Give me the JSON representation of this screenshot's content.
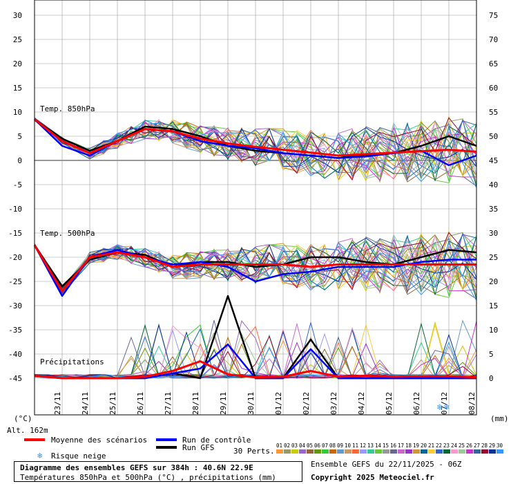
{
  "chart_data": {
    "type": "line",
    "left_axis": {
      "unit": "(°C)",
      "ticks": [
        30,
        25,
        20,
        15,
        10,
        5,
        0,
        -5,
        -10,
        -15,
        -20,
        -25,
        -30,
        -35,
        -40,
        -45
      ],
      "range": [
        -45,
        30
      ]
    },
    "right_axis": {
      "unit": "(mm)",
      "ticks": [
        75,
        70,
        65,
        60,
        55,
        50,
        45,
        40,
        35,
        30,
        25,
        20,
        15,
        10,
        5,
        0
      ],
      "range": [
        0,
        75
      ]
    },
    "x_labels": [
      "23/11",
      "24/11",
      "25/11",
      "26/11",
      "27/11",
      "28/11",
      "29/11",
      "30/11",
      "01/12",
      "02/12",
      "03/12",
      "04/12",
      "05/12",
      "06/12",
      "07/12",
      "08/12"
    ],
    "altitude_label": "Alt. 162m",
    "panel_labels": {
      "t850": "Temp. 850hPa",
      "t500": "Temp. 500hPa",
      "precip": "Précipitations"
    },
    "grid": true,
    "series": [
      {
        "name": "Moyenne des scénarios",
        "color": "#ff0000",
        "panel": "t850",
        "x": [
          0,
          1,
          2,
          3,
          4,
          5,
          6,
          7,
          8,
          9,
          10,
          11,
          12,
          13,
          14,
          15,
          16
        ],
        "values": [
          8.5,
          4,
          1.5,
          4,
          6.5,
          6,
          4.5,
          3.5,
          2.8,
          2.2,
          1.6,
          1.0,
          1.3,
          1.6,
          1.9,
          2.2,
          1.8
        ]
      },
      {
        "name": "Run de contrôle",
        "color": "#0000ff",
        "panel": "t850",
        "x": [
          0,
          1,
          2,
          3,
          4,
          5,
          6,
          7,
          8,
          9,
          10,
          11,
          12,
          13,
          14,
          15,
          16
        ],
        "values": [
          8.5,
          3,
          1,
          4,
          6.5,
          6,
          4,
          3,
          2.5,
          1.5,
          1,
          0.5,
          0.8,
          1.5,
          2,
          -1,
          1
        ]
      },
      {
        "name": "Run GFS",
        "color": "#000000",
        "panel": "t850",
        "x": [
          0,
          1,
          2,
          3,
          4,
          5,
          6,
          7,
          8,
          9,
          10,
          11,
          12,
          13,
          14,
          15,
          16
        ],
        "values": [
          8.5,
          4.5,
          2,
          4,
          7,
          6.5,
          5,
          3,
          2,
          1.5,
          1,
          0.5,
          1.2,
          1.5,
          3,
          5,
          3
        ]
      },
      {
        "name": "Moyenne des scénarios",
        "color": "#ff0000",
        "panel": "t500",
        "x": [
          0,
          1,
          2,
          3,
          4,
          5,
          6,
          7,
          8,
          9,
          10,
          11,
          12,
          13,
          14,
          15,
          16
        ],
        "values": [
          -17.5,
          -27,
          -20,
          -19,
          -20,
          -22,
          -21.5,
          -21.5,
          -21.5,
          -21.5,
          -22,
          -21.5,
          -21.5,
          -21.5,
          -21.5,
          -21.5,
          -21.5
        ]
      },
      {
        "name": "Run de contrôle",
        "color": "#0000ff",
        "panel": "t500",
        "x": [
          0,
          1,
          2,
          3,
          4,
          5,
          6,
          7,
          8,
          9,
          10,
          11,
          12,
          13,
          14,
          15,
          16
        ],
        "values": [
          -17.5,
          -28,
          -20,
          -18.5,
          -20,
          -21.5,
          -21,
          -22,
          -25,
          -23.5,
          -23,
          -22,
          -22,
          -22,
          -21,
          -20.5,
          -20.5
        ]
      },
      {
        "name": "Run GFS",
        "color": "#000000",
        "panel": "t500",
        "x": [
          0,
          1,
          2,
          3,
          4,
          5,
          6,
          7,
          8,
          9,
          10,
          11,
          12,
          13,
          14,
          15,
          16
        ],
        "values": [
          -17.5,
          -26,
          -20.5,
          -19,
          -19.5,
          -22,
          -21,
          -21,
          -22,
          -21.5,
          -20,
          -20,
          -21,
          -21.5,
          -20,
          -18.5,
          -19
        ]
      },
      {
        "name": "Moyenne des scénarios",
        "color": "#ff0000",
        "panel": "precip",
        "x": [
          0,
          1,
          2,
          3,
          4,
          5,
          6,
          7,
          8,
          9,
          10,
          11,
          12,
          13,
          14,
          15,
          16
        ],
        "values": [
          0.5,
          0,
          0,
          0,
          0.3,
          1.5,
          3.5,
          0.8,
          0.2,
          0.3,
          1.5,
          0.3,
          0.5,
          0.3,
          0.4,
          0.4,
          0.2
        ]
      },
      {
        "name": "Run de contrôle",
        "color": "#0000ff",
        "panel": "precip",
        "x": [
          0,
          1,
          2,
          3,
          4,
          5,
          6,
          7,
          8,
          9,
          10,
          11,
          12,
          13,
          14,
          15,
          16
        ],
        "values": [
          0.5,
          0,
          0,
          0,
          0,
          1,
          2,
          7,
          0,
          0,
          6,
          0,
          0,
          0,
          0,
          0,
          0
        ]
      },
      {
        "name": "Run GFS",
        "color": "#000000",
        "panel": "precip",
        "x": [
          0,
          1,
          2,
          3,
          4,
          5,
          6,
          7,
          8,
          9,
          10,
          11,
          12,
          13,
          14,
          15,
          16
        ],
        "values": [
          0.5,
          0,
          0,
          0,
          0,
          1,
          0,
          17,
          0,
          0,
          8,
          0,
          0,
          0,
          0,
          0,
          0
        ]
      }
    ]
  },
  "legend": {
    "mean": "Moyenne des scénarios",
    "control": "Run de contrôle",
    "gfs": "Run GFS",
    "snow": "Risque neige",
    "perts_label": "30 Perts.",
    "perts": [
      "01",
      "02",
      "03",
      "04",
      "05",
      "06",
      "07",
      "08",
      "09",
      "10",
      "11",
      "12",
      "13",
      "14",
      "15",
      "16",
      "17",
      "18",
      "19",
      "20",
      "21",
      "22",
      "23",
      "24",
      "25",
      "26",
      "27",
      "28",
      "29",
      "30"
    ],
    "pert_colors": [
      "#ff9933",
      "#999966",
      "#cccc00",
      "#9966cc",
      "#996633",
      "#669900",
      "#33cc33",
      "#cc6600",
      "#6699cc",
      "#cc9966",
      "#ff6633",
      "#9999ff",
      "#33cc99",
      "#66cc33",
      "#999999",
      "#666699",
      "#cc66cc",
      "#9933cc",
      "#cc9933",
      "#006699",
      "#ffcc33",
      "#3366cc",
      "#006633",
      "#ff99cc",
      "#99cc99",
      "#cc33cc",
      "#336699",
      "#990033",
      "#003399",
      "#3399ff"
    ]
  },
  "snow_marks": [
    "❄",
    "❄"
  ],
  "footer": {
    "title": "Diagramme des ensembles GEFS sur 384h : 40.6N 22.9E",
    "subtitle": "Températures 850hPa et 500hPa (°C) , précipitations (mm)",
    "run": "Ensemble GEFS du 22/11/2025 - 06Z",
    "copyright": "Copyright 2025 Meteociel.fr"
  },
  "colors": {
    "mean": "#ff0000",
    "control": "#0000ff",
    "gfs": "#000000",
    "grid": "#999999",
    "zero": "#999999"
  }
}
